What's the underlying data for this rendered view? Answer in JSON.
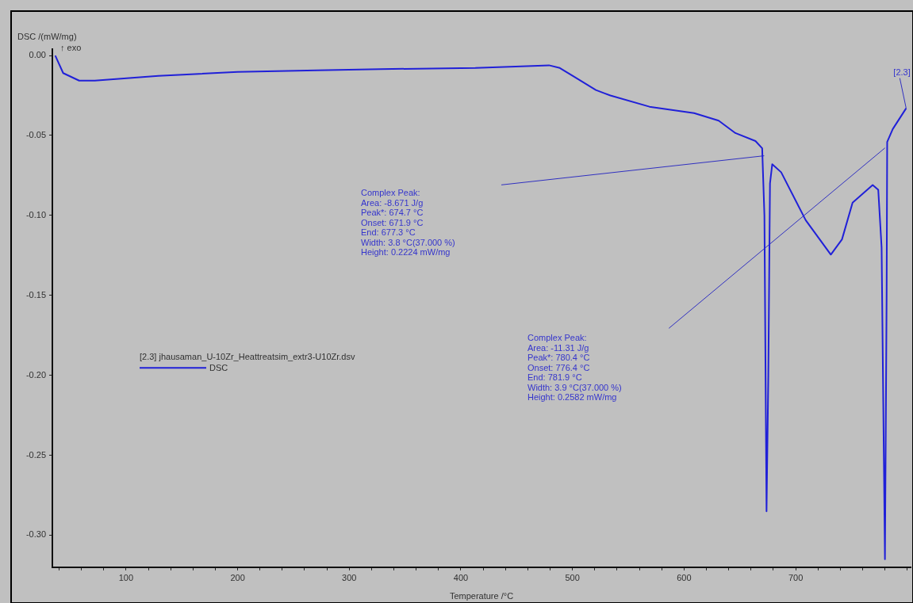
{
  "chart_data": {
    "type": "line",
    "xlabel": "Temperature /°C",
    "ylabel": "DSC /(mW/mg)",
    "legend_title": "[2.3] jhausaman_U-10Zr_Heattreatsim_extr3-U10Zr.dsv",
    "legend": "left",
    "grid": false,
    "marker": "none",
    "line_style": "solid",
    "xlim": [
      34,
      803
    ],
    "ylim": [
      -0.32,
      0.004
    ],
    "xticks": [
      {
        "value": 40,
        "label": null
      },
      {
        "value": 60,
        "label": null
      },
      {
        "value": 80,
        "label": null
      },
      100,
      {
        "value": 120,
        "label": null
      },
      {
        "value": 140,
        "label": null
      },
      {
        "value": 160,
        "label": null
      },
      {
        "value": 180,
        "label": null
      },
      200,
      {
        "value": 220,
        "label": null
      },
      {
        "value": 240,
        "label": null
      },
      {
        "value": 260,
        "label": null
      },
      {
        "value": 280,
        "label": null
      },
      300,
      {
        "value": 320,
        "label": null
      },
      {
        "value": 340,
        "label": null
      },
      {
        "value": 360,
        "label": null
      },
      {
        "value": 380,
        "label": null
      },
      400,
      {
        "value": 420,
        "label": null
      },
      {
        "value": 440,
        "label": null
      },
      {
        "value": 460,
        "label": null
      },
      {
        "value": 480,
        "label": null
      },
      500,
      {
        "value": 520,
        "label": null
      },
      {
        "value": 540,
        "label": null
      },
      {
        "value": 560,
        "label": null
      },
      {
        "value": 580,
        "label": null
      },
      600,
      {
        "value": 620,
        "label": null
      },
      {
        "value": 640,
        "label": null
      },
      {
        "value": 660,
        "label": null
      },
      {
        "value": 680,
        "label": null
      },
      700,
      {
        "value": 720,
        "label": null
      },
      {
        "value": 740,
        "label": null
      },
      {
        "value": 760,
        "label": null
      },
      {
        "value": 780,
        "label": null
      },
      {
        "value": 800,
        "label": null
      }
    ],
    "yticks": [
      {
        "value": 0,
        "label": "0.00"
      },
      {
        "value": -0.05,
        "label": "-0.05"
      },
      {
        "value": -0.1,
        "label": "-0.10"
      },
      {
        "value": -0.15,
        "label": "-0.15"
      },
      {
        "value": -0.2,
        "label": "-0.20"
      },
      {
        "value": -0.25,
        "label": "-0.25"
      },
      {
        "value": -0.3,
        "label": "-0.30"
      }
    ],
    "series": [
      {
        "name": "DSC",
        "color": "#2020d8",
        "x": [
          36.6,
          43.7,
          58,
          72,
          129,
          200,
          271,
          328,
          413,
          449,
          479,
          488.7,
          501,
          521,
          534,
          569,
          609,
          631,
          646,
          664,
          670,
          672,
          673.9,
          675.5,
          677,
          679,
          687,
          709,
          731.5,
          741.5,
          751,
          769,
          774,
          777,
          780,
          781.5,
          782,
          787,
          799
        ],
        "values": [
          0,
          -0.011,
          -0.0157,
          -0.0157,
          -0.0127,
          -0.0103,
          -0.0093,
          -0.0085,
          -0.0078,
          -0.0069,
          -0.0061,
          -0.0078,
          -0.013,
          -0.0216,
          -0.025,
          -0.032,
          -0.036,
          -0.0407,
          -0.0485,
          -0.0535,
          -0.058,
          -0.1,
          -0.285,
          -0.2,
          -0.08,
          -0.068,
          -0.073,
          -0.103,
          -0.1245,
          -0.115,
          -0.092,
          -0.081,
          -0.084,
          -0.12,
          -0.315,
          -0.15,
          -0.054,
          -0.046,
          -0.033
        ]
      },
      {
        "type": "line",
        "color": "#3030c0",
        "x": [
          436.3,
          671.8
        ],
        "values": [
          -0.0809,
          -0.0627
        ]
      },
      {
        "type": "line",
        "color": "#3030c0",
        "x": [
          586.4,
          780
        ],
        "values": [
          -0.1706,
          -0.0578
        ]
      }
    ],
    "annotations": [
      "↑ exo",
      "Complex Peak:\nArea: -8.671 J/g\nPeak*: 674.7 °C\nOnset: 671.9 °C\nEnd: 677.3 °C\nWidth: 3.8 °C(37.000 %)\nHeight: 0.2224 mW/mg",
      "Complex Peak:\nArea: -11.31 J/g\nPeak*: 780.4 °C\nOnset: 776.4 °C\nEnd: 781.9 °C\nWidth: 3.9 °C(37.000 %)\nHeight: 0.2582 mW/mg",
      {
        "text": "[2.3]",
        "x": 799,
        "y": -0.033
      }
    ]
  }
}
